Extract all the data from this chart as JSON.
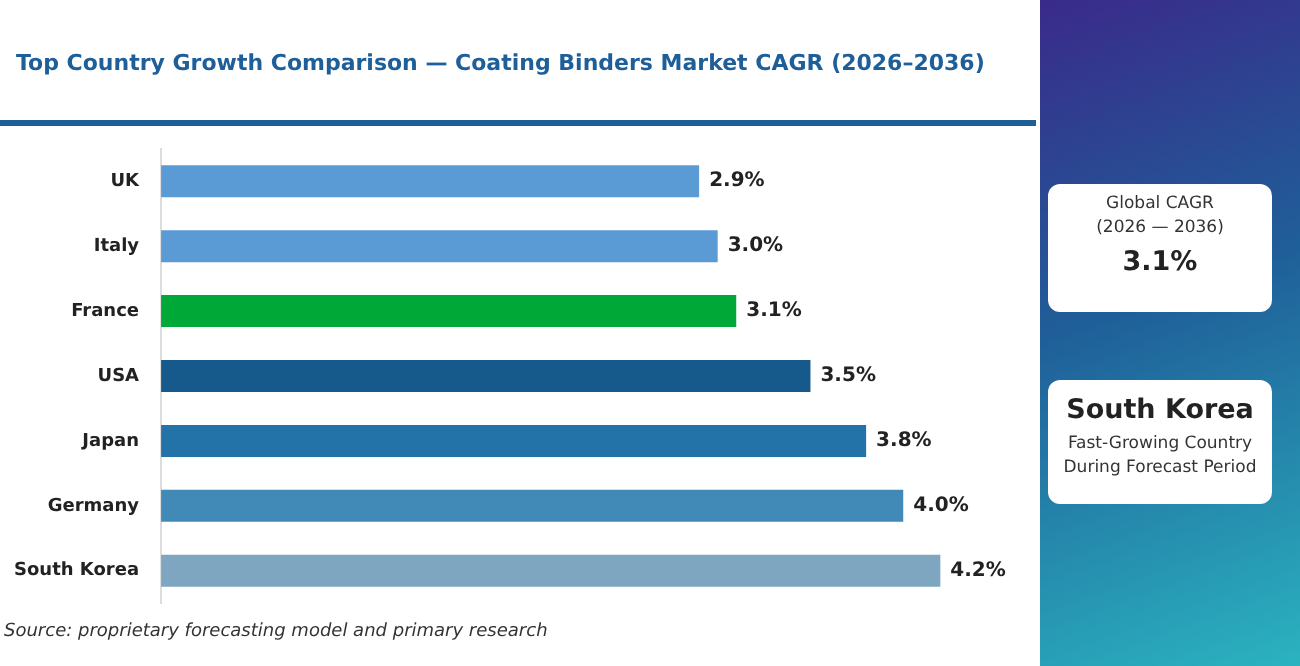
{
  "chart_data": {
    "type": "bar",
    "orientation": "horizontal",
    "title": "Top Country Growth Comparison — Coating Binders Market CAGR (2026–2036)",
    "categories": [
      "UK",
      "Italy",
      "France",
      "USA",
      "Japan",
      "Germany",
      "South Korea"
    ],
    "values": [
      2.9,
      3.0,
      3.1,
      3.5,
      3.8,
      4.0,
      4.2
    ],
    "colors": [
      "#5b9bd5",
      "#5b9bd5",
      "#00a838",
      "#155a8a",
      "#2373a8",
      "#4189b6",
      "#7ea6c0"
    ],
    "value_labels": [
      "2.9%",
      "3.0%",
      "3.1%",
      "3.5%",
      "3.8%",
      "4.0%",
      "4.2%"
    ],
    "legend": false,
    "annotations": [
      "Source: proprietary forecasting model and primary research",
      "Global CAGR",
      "(2026 — 2036)",
      "3.1%",
      "South Korea",
      "Fast-Growing Country During Forecast Period"
    ]
  }
}
